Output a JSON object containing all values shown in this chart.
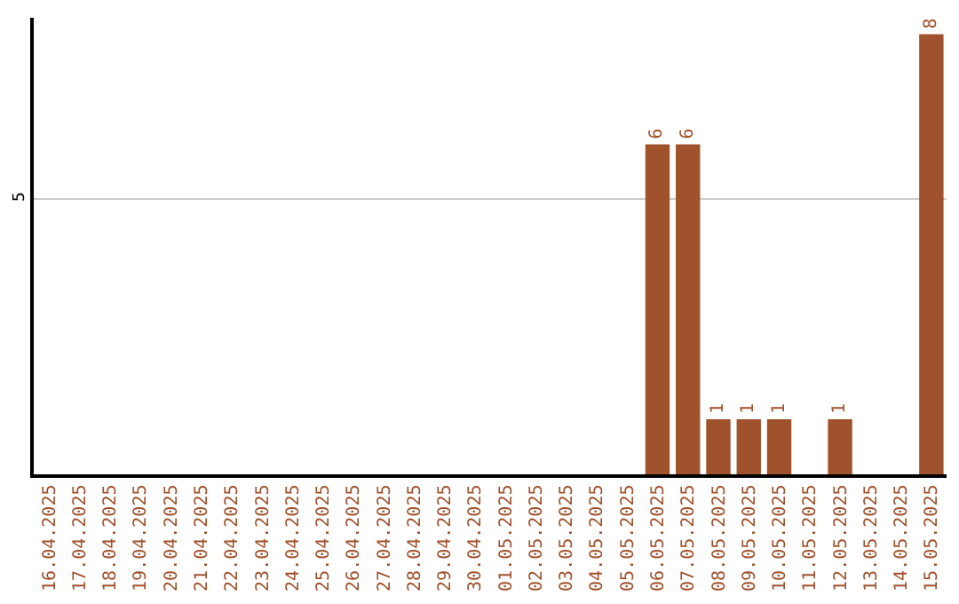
{
  "chart_data": {
    "type": "bar",
    "categories": [
      "16.04.2025",
      "17.04.2025",
      "18.04.2025",
      "19.04.2025",
      "20.04.2025",
      "21.04.2025",
      "22.04.2025",
      "23.04.2025",
      "24.04.2025",
      "25.04.2025",
      "26.04.2025",
      "27.04.2025",
      "28.04.2025",
      "29.04.2025",
      "30.04.2025",
      "01.05.2025",
      "02.05.2025",
      "03.05.2025",
      "04.05.2025",
      "05.05.2025",
      "06.05.2025",
      "07.05.2025",
      "08.05.2025",
      "09.05.2025",
      "10.05.2025",
      "11.05.2025",
      "12.05.2025",
      "13.05.2025",
      "14.05.2025",
      "15.05.2025"
    ],
    "values": [
      null,
      null,
      null,
      null,
      null,
      null,
      null,
      null,
      null,
      null,
      null,
      null,
      null,
      null,
      null,
      null,
      null,
      null,
      null,
      null,
      6,
      6,
      1,
      1,
      1,
      null,
      1,
      null,
      null,
      8
    ],
    "color": "#a0522d",
    "ylim": [
      0,
      8.3
    ],
    "yticks": [
      5
    ],
    "grid": "y",
    "data_labels": true
  }
}
